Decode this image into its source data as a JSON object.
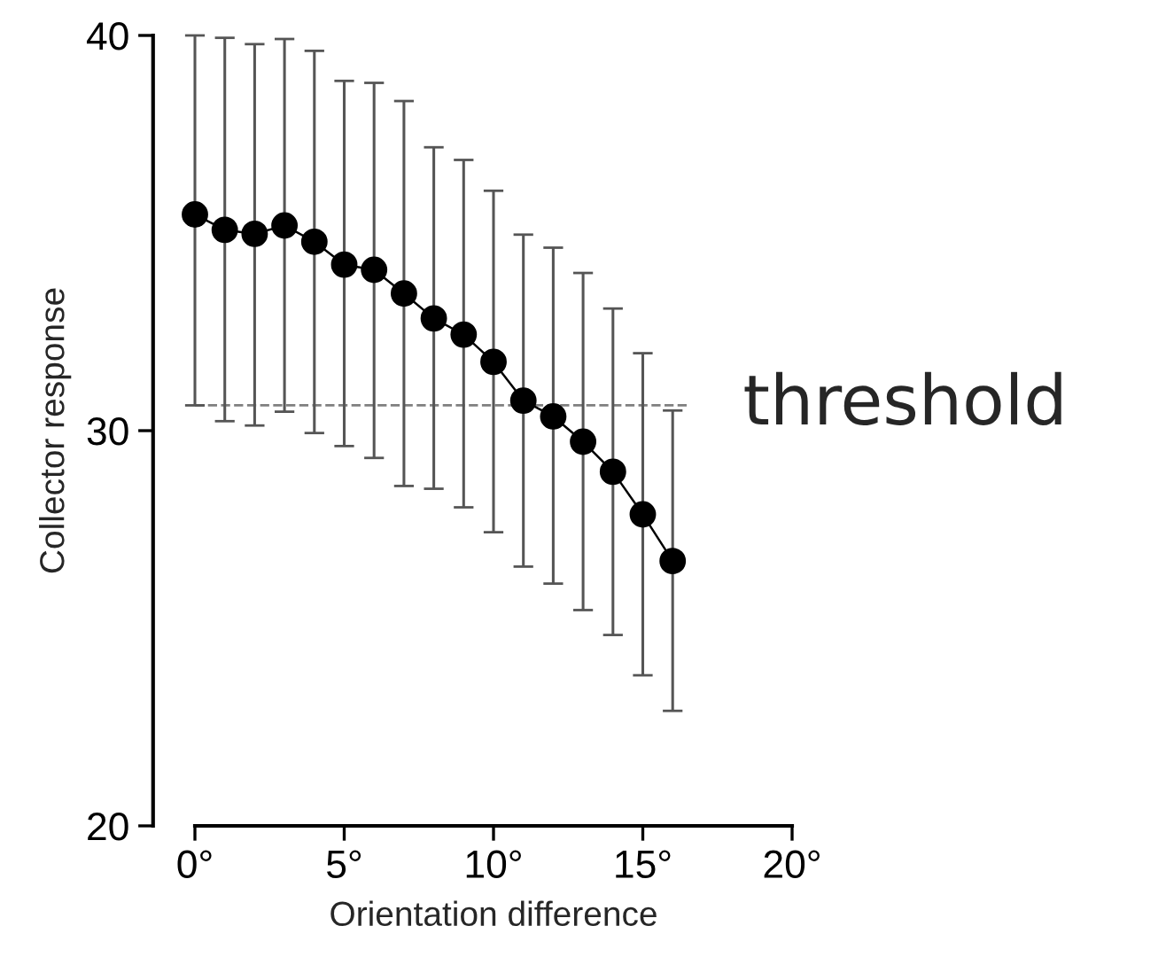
{
  "chart_data": {
    "type": "line",
    "xlabel": "Orientation difference",
    "ylabel": "Collector response",
    "x": [
      0,
      1,
      2,
      3,
      4,
      5,
      6,
      7,
      8,
      9,
      10,
      11,
      12,
      13,
      14,
      15,
      16
    ],
    "series": [
      {
        "color": "#000000",
        "values": [
          35.47,
          35.08,
          34.98,
          35.19,
          34.78,
          34.2,
          34.07,
          33.47,
          32.84,
          32.43,
          31.74,
          30.76,
          30.36,
          29.72,
          28.96,
          27.88,
          26.7
        ],
        "errors": [
          [
            30.64,
            40
          ],
          [
            30.24,
            39.94
          ],
          [
            30.13,
            39.78
          ],
          [
            30.48,
            39.91
          ],
          [
            29.94,
            39.61
          ],
          [
            29.61,
            38.85
          ],
          [
            29.31,
            38.8
          ],
          [
            28.6,
            38.34
          ],
          [
            28.53,
            37.17
          ],
          [
            28.06,
            36.85
          ],
          [
            27.43,
            36.07
          ],
          [
            26.56,
            34.96
          ],
          [
            26.13,
            34.63
          ],
          [
            25.46,
            33.99
          ],
          [
            24.83,
            33.09
          ],
          [
            23.81,
            31.96
          ],
          [
            22.91,
            30.51
          ]
        ]
      }
    ],
    "xlim": [
      0,
      20
    ],
    "ylim": [
      20,
      40
    ],
    "xticks": [
      {
        "value": 0,
        "label": "0°"
      },
      {
        "value": 5,
        "label": "5°"
      },
      {
        "value": 10,
        "label": "10°"
      },
      {
        "value": 15,
        "label": "15°"
      },
      {
        "value": 20,
        "label": "20°"
      }
    ],
    "yticks": [
      20,
      30,
      40
    ],
    "ref_lines": [
      {
        "axis": "y",
        "value": 30.64,
        "label": "threshold",
        "color": "#808080",
        "line_style": "dashed"
      }
    ],
    "marker": "circle",
    "line_style": "solid",
    "grid": false,
    "legend": false
  }
}
